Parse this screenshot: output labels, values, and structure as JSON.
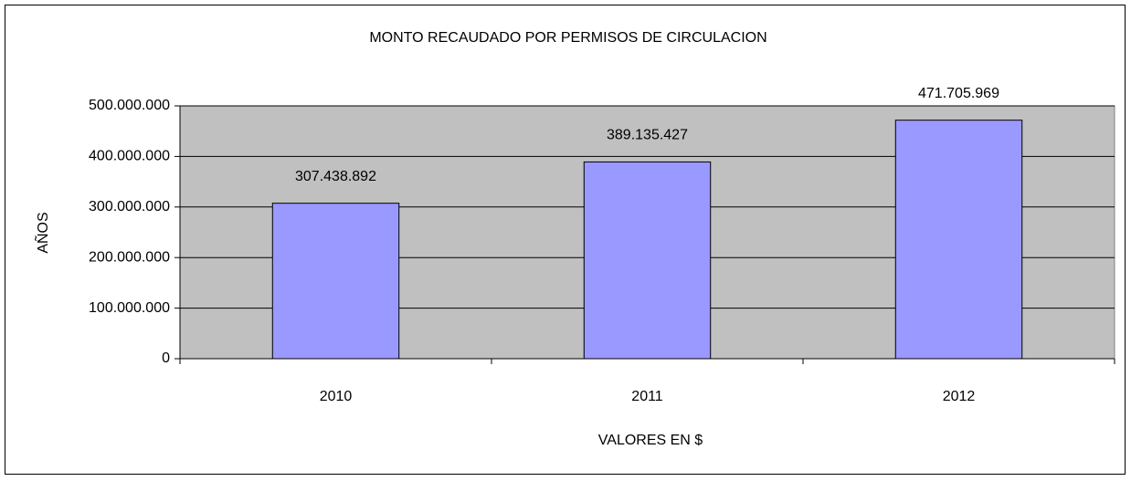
{
  "chart_data": {
    "type": "bar",
    "title": "MONTO RECAUDADO POR PERMISOS DE CIRCULACION",
    "x_label": "VALORES EN $",
    "y_label": "AÑOS",
    "categories": [
      "2010",
      "2011",
      "2012"
    ],
    "values": [
      307438892,
      389135427,
      471705969
    ],
    "value_labels": [
      "307.438.892",
      "389.135.427",
      "471.705.969"
    ],
    "color": "#9999ff",
    "ylim": [
      0,
      500000000
    ],
    "yticks": [
      0,
      {
        "value": 100000000,
        "label": "100.000.000"
      },
      {
        "value": 200000000,
        "label": "200.000.000"
      },
      {
        "value": 300000000,
        "label": "300.000.000"
      },
      {
        "value": 400000000,
        "label": "400.000.000"
      },
      {
        "value": 500000000,
        "label": "500.000.000"
      }
    ],
    "grid": true
  }
}
